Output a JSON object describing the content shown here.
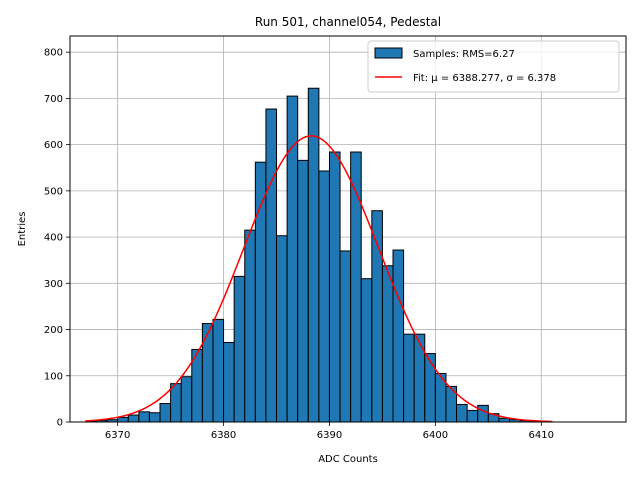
{
  "chart_data": {
    "type": "bar",
    "title": "Run 501, channel054, Pedestal",
    "xlabel": "ADC Counts",
    "ylabel": "Entries",
    "xlim": [
      6365.5,
      6418
    ],
    "ylim": [
      0,
      835
    ],
    "xticks": [
      6370,
      6380,
      6390,
      6400,
      6410
    ],
    "yticks": [
      0,
      100,
      200,
      300,
      400,
      500,
      600,
      700,
      800
    ],
    "grid": true,
    "legend_position": "top-right",
    "series": [
      {
        "name": "Samples: RMS=6.27",
        "kind": "histogram",
        "color": "#1f77b4",
        "edge_color": "#000000",
        "bin_width": 1,
        "bin_start": [
          6367,
          6368,
          6369,
          6370,
          6371,
          6372,
          6373,
          6374,
          6375,
          6376,
          6377,
          6378,
          6379,
          6380,
          6381,
          6382,
          6383,
          6384,
          6385,
          6386,
          6387,
          6388,
          6389,
          6390,
          6391,
          6392,
          6393,
          6394,
          6395,
          6396,
          6397,
          6398,
          6399,
          6400,
          6401,
          6402,
          6403,
          6404,
          6405,
          6406,
          6407,
          6408,
          6409,
          6410
        ],
        "counts": [
          2,
          3,
          5,
          10,
          15,
          22,
          20,
          40,
          83,
          98,
          157,
          213,
          222,
          172,
          315,
          415,
          562,
          677,
          403,
          705,
          566,
          722,
          543,
          584,
          370,
          584,
          310,
          457,
          338,
          372,
          190,
          190,
          148,
          105,
          77,
          38,
          25,
          36,
          18,
          8,
          5,
          3,
          1,
          1
        ]
      },
      {
        "name": "Fit: μ = 6388.277, σ = 6.378",
        "kind": "line",
        "color": "#ff0000",
        "mu": 6388.277,
        "sigma": 6.378,
        "amplitude": 619,
        "x_range": [
          6367,
          6411
        ]
      }
    ],
    "legend": {
      "samples": "Samples: RMS=6.27",
      "fit": "Fit: μ = 6388.277, σ = 6.378"
    }
  }
}
